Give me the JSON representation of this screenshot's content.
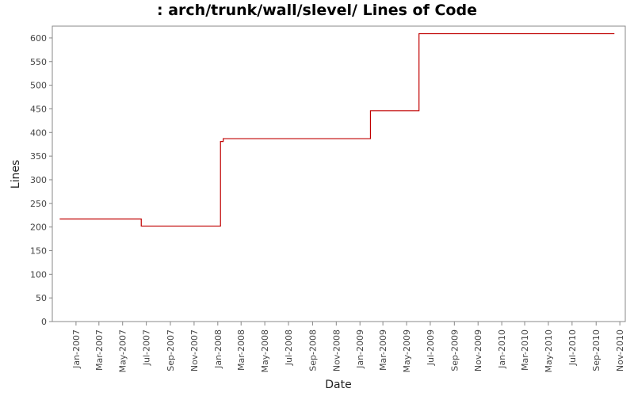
{
  "chart_data": {
    "type": "line",
    "title": ": arch/trunk/wall/slevel/ Lines of Code",
    "xlabel": "Date",
    "ylabel": "Lines",
    "ylim": [
      0,
      625
    ],
    "xlim": [
      "2006-11-01",
      "2010-11-15"
    ],
    "grid": false,
    "y_ticks": [
      0,
      50,
      100,
      150,
      200,
      250,
      300,
      350,
      400,
      450,
      500,
      550,
      600
    ],
    "x_ticks": [
      {
        "label": "Jan-2007",
        "date": "2007-01-01"
      },
      {
        "label": "Mar-2007",
        "date": "2007-03-01"
      },
      {
        "label": "May-2007",
        "date": "2007-05-01"
      },
      {
        "label": "Jul-2007",
        "date": "2007-07-01"
      },
      {
        "label": "Sep-2007",
        "date": "2007-09-01"
      },
      {
        "label": "Nov-2007",
        "date": "2007-11-01"
      },
      {
        "label": "Jan-2008",
        "date": "2008-01-01"
      },
      {
        "label": "Mar-2008",
        "date": "2008-03-01"
      },
      {
        "label": "May-2008",
        "date": "2008-05-01"
      },
      {
        "label": "Jul-2008",
        "date": "2008-07-01"
      },
      {
        "label": "Sep-2008",
        "date": "2008-09-01"
      },
      {
        "label": "Nov-2008",
        "date": "2008-11-01"
      },
      {
        "label": "Jan-2009",
        "date": "2009-01-01"
      },
      {
        "label": "Mar-2009",
        "date": "2009-03-01"
      },
      {
        "label": "May-2009",
        "date": "2009-05-01"
      },
      {
        "label": "Jul-2009",
        "date": "2009-07-01"
      },
      {
        "label": "Sep-2009",
        "date": "2009-09-01"
      },
      {
        "label": "Nov-2009",
        "date": "2009-11-01"
      },
      {
        "label": "Jan-2010",
        "date": "2010-01-01"
      },
      {
        "label": "Mar-2010",
        "date": "2010-03-01"
      },
      {
        "label": "May-2010",
        "date": "2010-05-01"
      },
      {
        "label": "Jul-2010",
        "date": "2010-07-01"
      },
      {
        "label": "Sep-2010",
        "date": "2010-09-01"
      },
      {
        "label": "Nov-2010",
        "date": "2010-11-01"
      }
    ],
    "series": [
      {
        "color": "#c00000",
        "step": true,
        "points": [
          {
            "x": "2006-11-20",
            "y": 217
          },
          {
            "x": "2007-06-18",
            "y": 202
          },
          {
            "x": "2008-01-08",
            "y": 381
          },
          {
            "x": "2008-01-15",
            "y": 387
          },
          {
            "x": "2009-01-28",
            "y": 446
          },
          {
            "x": "2009-06-02",
            "y": 609
          },
          {
            "x": "2010-10-18",
            "y": 609
          }
        ]
      }
    ]
  }
}
